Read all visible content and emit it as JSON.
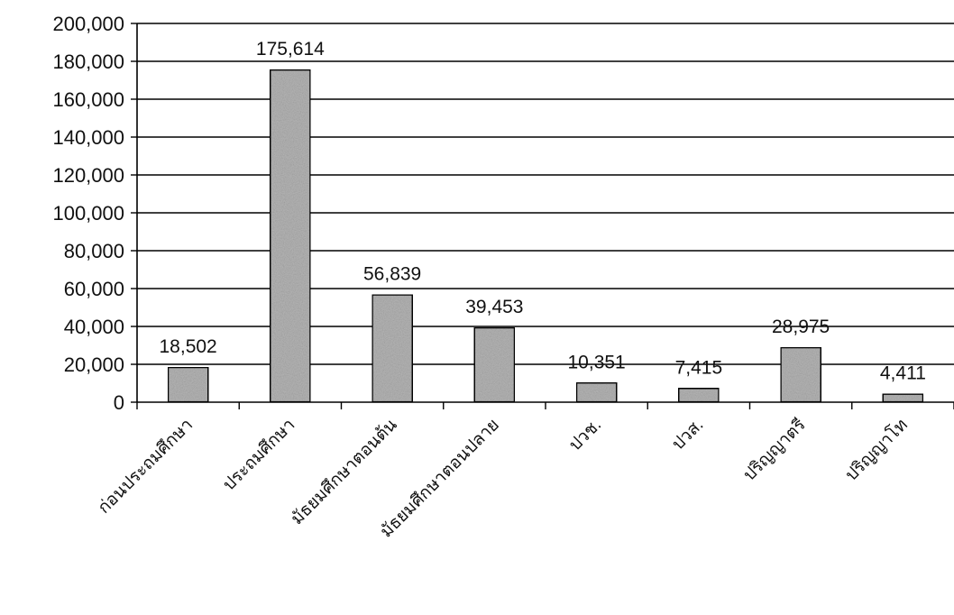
{
  "chart_data": {
    "type": "bar",
    "title": "",
    "xlabel": "",
    "ylabel": "",
    "categories": [
      "ก่อนประถมศึกษา",
      "ประถมศึกษา",
      "มัธยมศึกษาตอนต้น",
      "มัธยมศึกษาตอนปลาย",
      "ปวช.",
      "ปวส.",
      "ปริญญาตรี",
      "ปริญญาโท"
    ],
    "values": [
      18502,
      175614,
      56839,
      39453,
      10351,
      7415,
      28975,
      4411
    ],
    "value_labels": [
      "18,502",
      "175,614",
      "56,839",
      "39,453",
      "10,351",
      "7,415",
      "28,975",
      "4,411"
    ],
    "yticks": [
      0,
      20000,
      40000,
      60000,
      80000,
      100000,
      120000,
      140000,
      160000,
      180000,
      200000
    ],
    "ytick_labels": [
      "0",
      "20,000",
      "40,000",
      "60,000",
      "80,000",
      "100,000",
      "120,000",
      "140,000",
      "160,000",
      "180,000",
      "200,000"
    ],
    "ylim": [
      0,
      200000
    ],
    "grid": true,
    "legend": "none",
    "bar_color": "#b5b5b5",
    "bar_edge_color": "#000000",
    "grid_color": "#000000"
  }
}
